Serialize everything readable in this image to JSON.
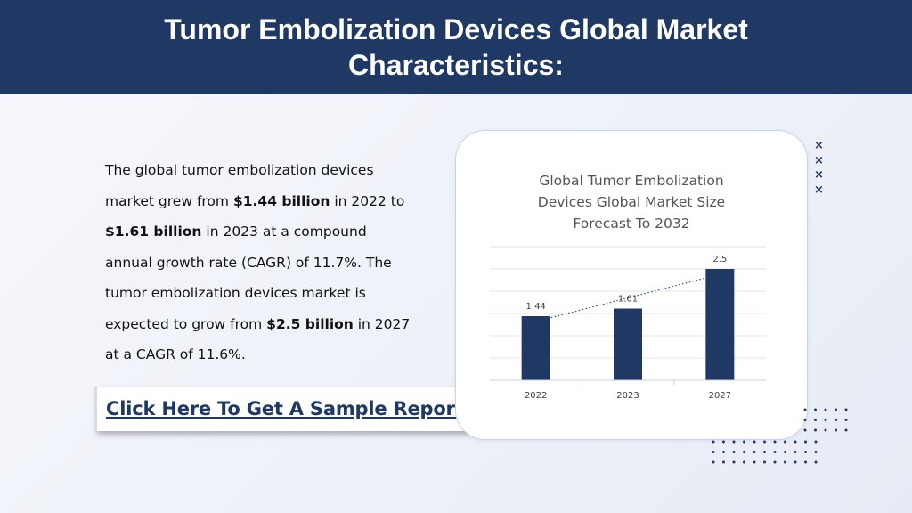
{
  "header": {
    "title_line1": "Tumor Embolization Devices Global Market",
    "title_line2": "Characteristics:"
  },
  "body": {
    "p1": "The global tumor embolization devices market grew from ",
    "b1": "$1.44 billion",
    "p2": " in 2022 to ",
    "b2": "$1.61 billion",
    "p3": " in 2023 at a compound annual growth rate (CAGR) of 11.7%.  The tumor embolization devices market is expected to grow from ",
    "b3": "$2.5 billion",
    "p4": " in 2027 at a CAGR of 11.6%."
  },
  "cta": {
    "label": "Click Here To Get A Sample Report"
  },
  "chart_data": {
    "type": "bar",
    "title_lines": [
      "Global Tumor Embolization",
      "Devices Global Market Size",
      "Forecast To 2032"
    ],
    "categories": [
      "2022",
      "2023",
      "2027"
    ],
    "values": [
      1.44,
      1.61,
      2.5
    ],
    "data_labels": [
      "1.44",
      "1.61",
      "2.5"
    ],
    "ylim": [
      0,
      3
    ],
    "grid": true,
    "trendline": "linear, dotted",
    "bar_color": "#1f3864",
    "legend": "none"
  },
  "decor": {
    "x_icons": [
      "×",
      "×",
      "×",
      "×"
    ]
  },
  "colors": {
    "header_bg": "#1f3864",
    "accent": "#1f3864",
    "text": "#111111"
  }
}
